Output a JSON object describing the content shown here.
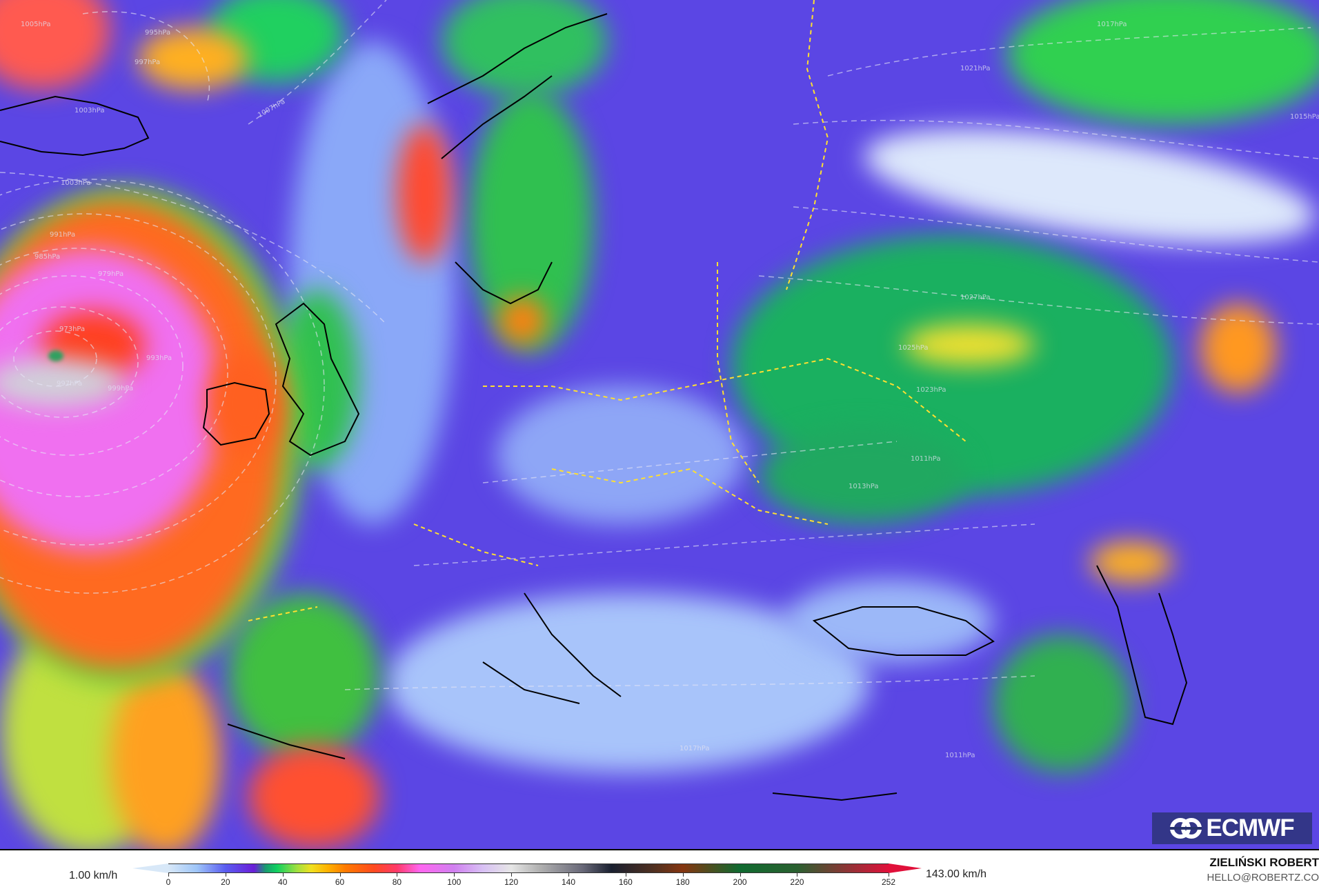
{
  "map": {
    "variable_unit": "km/h",
    "isobar_labels": [
      "1005hPa",
      "995hPa",
      "997hPa",
      "1003hPa",
      "1007hPa",
      "1003hPa",
      "991hPa",
      "985hPa",
      "979hPa",
      "973hPa",
      "993hPa",
      "997hPa",
      "999hPa",
      "1017hPa",
      "1021hPa",
      "1027hPa",
      "1025hPa",
      "1023hPa",
      "1015hPa",
      "1011hPa",
      "1013hPa",
      "1017hPa",
      "1011hPa"
    ]
  },
  "logo": {
    "text": "ECMWF"
  },
  "legend": {
    "min_label": "1.00 km/h",
    "max_label": "143.00 km/h",
    "ticks": [
      "0",
      "20",
      "40",
      "60",
      "80",
      "100",
      "120",
      "140",
      "160",
      "180",
      "200",
      "220",
      "252"
    ],
    "tick_values": [
      0,
      20,
      40,
      60,
      80,
      100,
      120,
      140,
      160,
      180,
      200,
      220,
      252
    ],
    "colorscale": [
      [
        0,
        "#d8e8f8"
      ],
      [
        10,
        "#9ec5f8"
      ],
      [
        20,
        "#5a5cf0"
      ],
      [
        30,
        "#6a1ed8"
      ],
      [
        34,
        "#1a9a70"
      ],
      [
        38,
        "#10d060"
      ],
      [
        45,
        "#a0e040"
      ],
      [
        50,
        "#f0e020"
      ],
      [
        56,
        "#ffb000"
      ],
      [
        62,
        "#ff7a00"
      ],
      [
        72,
        "#ff4a20"
      ],
      [
        80,
        "#ff3a6a"
      ],
      [
        88,
        "#ff66f0"
      ],
      [
        100,
        "#d080f0"
      ],
      [
        110,
        "#d8c0f4"
      ],
      [
        120,
        "#e6e6e6"
      ],
      [
        130,
        "#b0b0b0"
      ],
      [
        145,
        "#686878"
      ],
      [
        155,
        "#1a2030"
      ],
      [
        170,
        "#503020"
      ],
      [
        180,
        "#853510"
      ],
      [
        200,
        "#106a30"
      ],
      [
        220,
        "#2a6030"
      ],
      [
        252,
        "#e0103a"
      ]
    ]
  },
  "author": {
    "name": "ZIELIŃSKI ROBERT",
    "email": "HELLO@ROBERTZ.CO"
  }
}
